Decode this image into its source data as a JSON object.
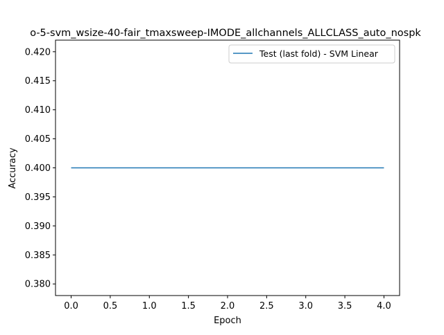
{
  "chart_data": {
    "type": "line",
    "title": "o-5-svm_wsize-40-fair_tmaxsweep-IMODE_allchannels_ALLCLASS_auto_nospk",
    "xlabel": "Epoch",
    "ylabel": "Accuracy",
    "xlim": [
      -0.2,
      4.2
    ],
    "ylim": [
      0.378,
      0.422
    ],
    "x_ticks": [
      0.0,
      0.5,
      1.0,
      1.5,
      2.0,
      2.5,
      3.0,
      3.5,
      4.0
    ],
    "x_tick_labels": [
      "0.0",
      "0.5",
      "1.0",
      "1.5",
      "2.0",
      "2.5",
      "3.0",
      "3.5",
      "4.0"
    ],
    "y_ticks": [
      0.38,
      0.385,
      0.39,
      0.395,
      0.4,
      0.405,
      0.41,
      0.415,
      0.42
    ],
    "y_tick_labels": [
      "0.380",
      "0.385",
      "0.390",
      "0.395",
      "0.400",
      "0.405",
      "0.410",
      "0.415",
      "0.420"
    ],
    "grid": false,
    "legend_position": "upper right",
    "series": [
      {
        "name": "Test (last fold) - SVM Linear",
        "color": "#1f77b4",
        "x": [
          0,
          1,
          2,
          3,
          4
        ],
        "y": [
          0.4,
          0.4,
          0.4,
          0.4,
          0.4
        ]
      }
    ]
  }
}
